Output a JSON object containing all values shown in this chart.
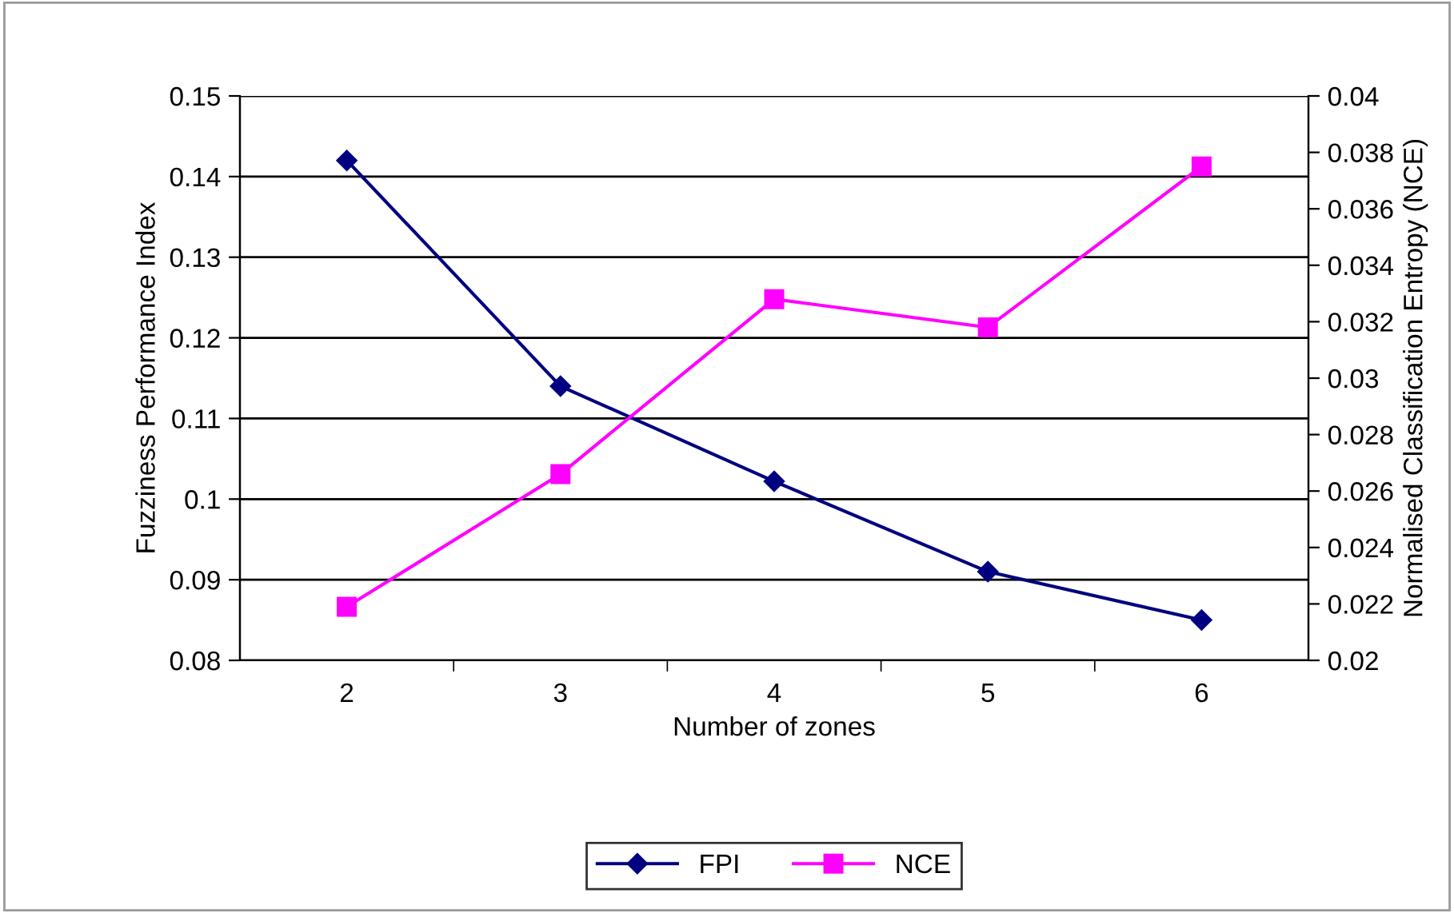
{
  "chart_data": {
    "type": "line",
    "xlabel": "Number of zones",
    "ylabel": "Fuzziness Performance Index",
    "y2label": "Normalised Classification Entropy (NCE)",
    "categories": [
      "2",
      "3",
      "4",
      "5",
      "6"
    ],
    "series": [
      {
        "name": "FPI",
        "color": "#000080",
        "marker": "diamond",
        "values": [
          0.142,
          0.114,
          0.1022,
          0.091,
          0.085
        ]
      },
      {
        "name": "NCE",
        "color": "#ff00ff",
        "marker": "square",
        "axis": "y2",
        "values": [
          0.0219,
          0.0266,
          0.0328,
          0.0318,
          0.0375
        ]
      }
    ],
    "ylim": [
      0.08,
      0.15
    ],
    "yticks": [
      0.08,
      0.09,
      0.1,
      0.11,
      0.12,
      0.13,
      0.14,
      0.15
    ],
    "y2lim": [
      0.02,
      0.04
    ],
    "y2ticks": [
      0.02,
      0.022,
      0.024,
      0.026,
      0.028,
      0.03,
      0.032,
      0.034,
      0.036,
      0.038,
      0.04
    ],
    "grid": "y",
    "legend": "bottom",
    "line_style": "solid"
  }
}
